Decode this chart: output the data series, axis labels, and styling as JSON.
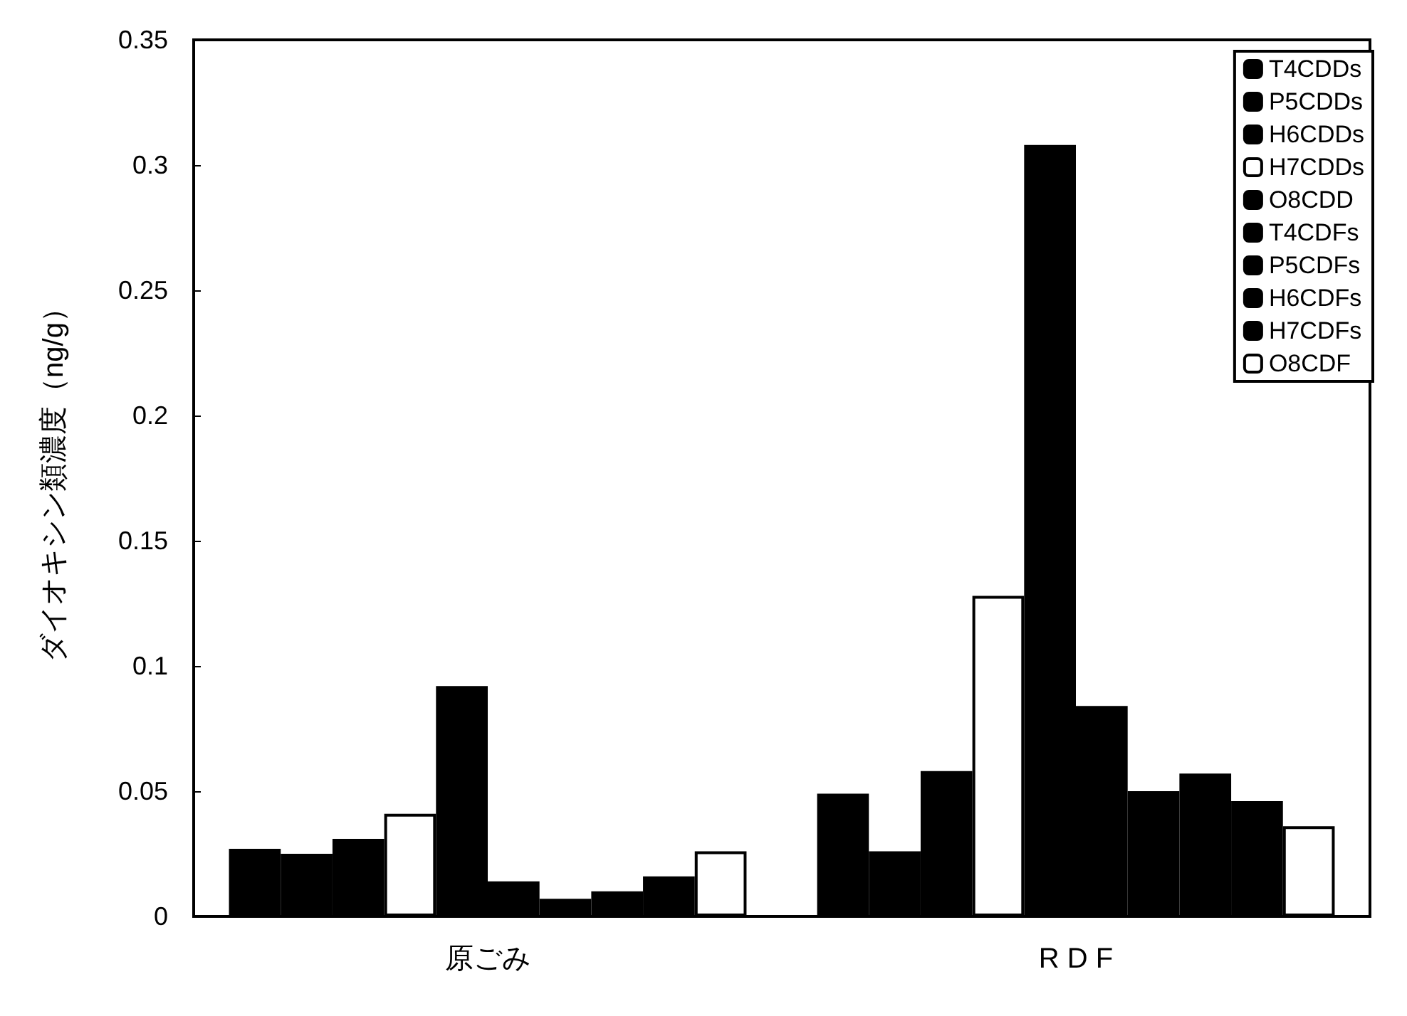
{
  "chart_data": {
    "type": "bar",
    "ylabel": "ダイオキシン類濃度（ng/g）",
    "categories": [
      "原ごみ",
      "R D F"
    ],
    "series": [
      {
        "name": "T4CDDs",
        "color": "#000000",
        "values": [
          0.027,
          0.049
        ]
      },
      {
        "name": "P5CDDs",
        "color": "#000000",
        "values": [
          0.025,
          0.026
        ]
      },
      {
        "name": "H6CDDs",
        "color": "#000000",
        "values": [
          0.031,
          0.058
        ]
      },
      {
        "name": "H7CDDs",
        "color": "#ffffff",
        "values": [
          0.041,
          0.128
        ]
      },
      {
        "name": "O8CDD",
        "color": "#000000",
        "values": [
          0.092,
          0.308
        ]
      },
      {
        "name": "T4CDFs",
        "color": "#000000",
        "values": [
          0.014,
          0.084
        ]
      },
      {
        "name": "P5CDFs",
        "color": "#000000",
        "values": [
          0.007,
          0.05
        ]
      },
      {
        "name": "H6CDFs",
        "color": "#000000",
        "values": [
          0.01,
          0.057
        ]
      },
      {
        "name": "H7CDFs",
        "color": "#000000",
        "values": [
          0.016,
          0.046
        ]
      },
      {
        "name": "O8CDF",
        "color": "#ffffff",
        "values": [
          0.026,
          0.036
        ]
      }
    ],
    "ylim": [
      0,
      0.35
    ],
    "yticks": [
      0,
      0.05,
      0.1,
      0.15,
      0.2,
      0.25,
      0.3,
      0.35
    ],
    "grid": false,
    "legend": "top right"
  }
}
